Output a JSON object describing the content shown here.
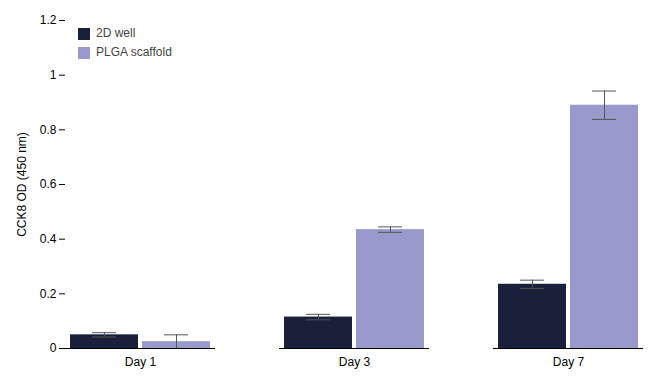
{
  "chart_data": {
    "type": "bar",
    "categories": [
      "Day 1",
      "Day 3",
      "Day 7"
    ],
    "series": [
      {
        "name": "2D well",
        "color": "#1a1f3a",
        "values": [
          0.05,
          0.115,
          0.235
        ],
        "errors": [
          0.008,
          0.01,
          0.015
        ]
      },
      {
        "name": "PLGA scaffold",
        "color": "#9999cc",
        "values": [
          0.025,
          0.435,
          0.89
        ],
        "errors": [
          0.025,
          0.01,
          0.052
        ]
      }
    ],
    "ylabel": "CCK8 OD (450 nm)",
    "ylim": [
      0,
      1.2
    ],
    "yticks": [
      0,
      0.2,
      0.4,
      0.6,
      0.8,
      1,
      1.2
    ],
    "grid": false,
    "legend": "upper left"
  }
}
